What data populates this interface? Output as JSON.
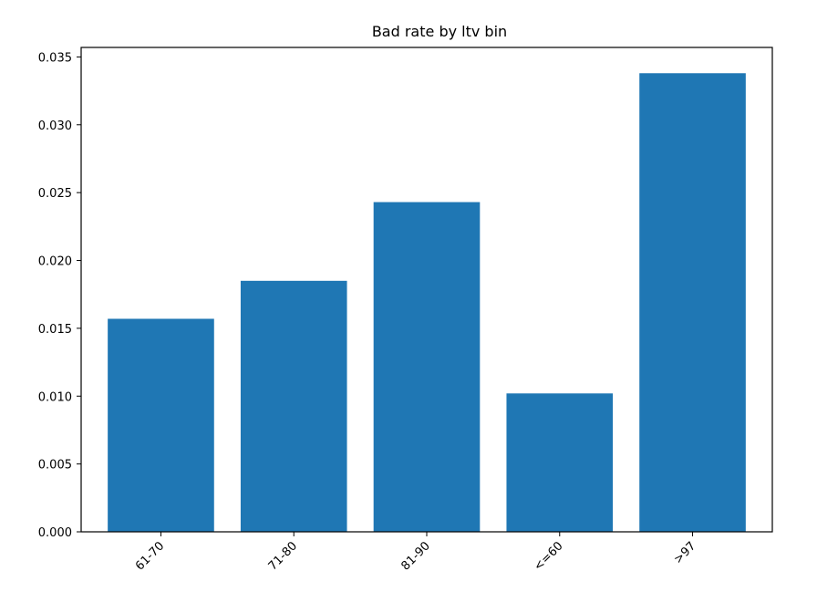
{
  "chart_data": {
    "type": "bar",
    "title": "Bad rate by ltv bin",
    "xlabel": "",
    "ylabel": "",
    "categories": [
      "61-70",
      "71-80",
      "81-90",
      "<=60",
      ">97"
    ],
    "values": [
      0.0157,
      0.0185,
      0.0243,
      0.0102,
      0.0338
    ],
    "ylim": [
      0,
      0.0357
    ],
    "yticks": [
      0.0,
      0.005,
      0.01,
      0.015,
      0.02,
      0.025,
      0.03,
      0.035
    ],
    "ytick_labels": [
      "0.000",
      "0.005",
      "0.010",
      "0.015",
      "0.020",
      "0.025",
      "0.030",
      "0.035"
    ],
    "bar_color": "#1f77b4",
    "grid": false,
    "xtick_rotation_deg": 45
  }
}
